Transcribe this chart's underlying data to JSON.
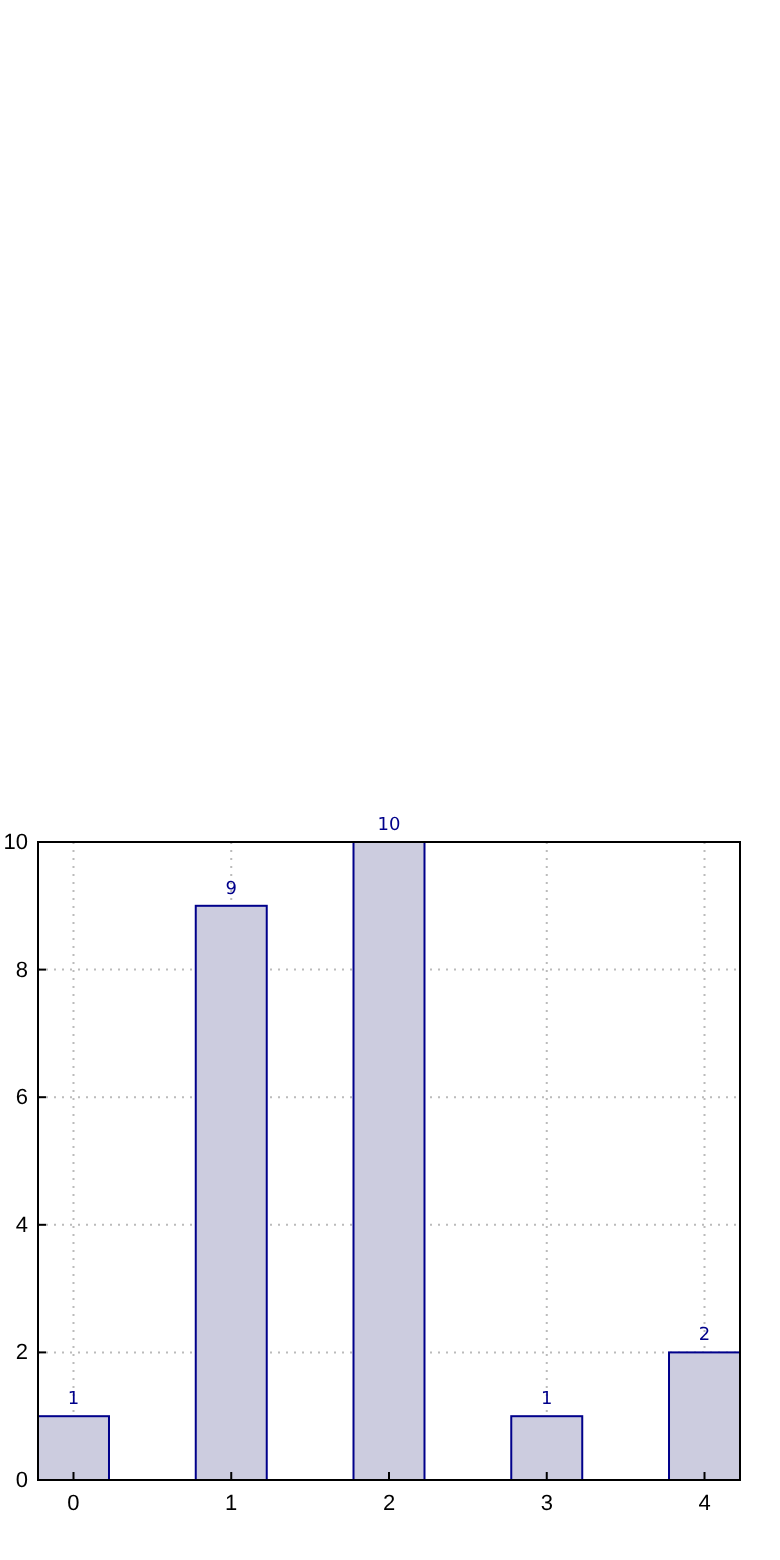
{
  "chart_data": {
    "type": "bar",
    "categories": [
      "0",
      "1",
      "2",
      "3",
      "4"
    ],
    "series": [
      {
        "color": "#ccccdf",
        "values": [
          1,
          9,
          10,
          1,
          2
        ]
      }
    ],
    "ylim": [
      0,
      10
    ],
    "yticks": [
      0,
      2,
      4,
      6,
      8,
      10
    ],
    "grid": true,
    "data_labels": true
  }
}
